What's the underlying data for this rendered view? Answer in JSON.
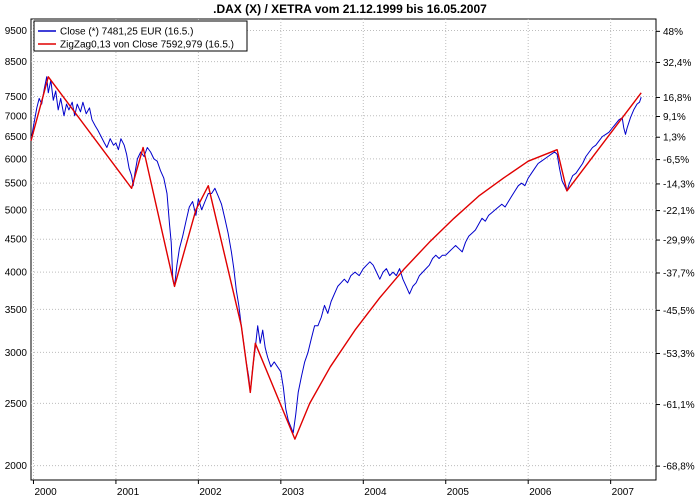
{
  "chart_data": {
    "type": "line",
    "title": ".DAX (X) / XETRA vom 21.12.1999 bis 16.05.2007",
    "xlabel": "",
    "ylabel": "",
    "y_scale": "log",
    "ylim": [
      1900,
      9900
    ],
    "xlim": [
      1999.97,
      2007.55
    ],
    "grid": true,
    "legend_position": "top-left",
    "x_ticks": [
      "2000",
      "2001",
      "2002",
      "2003",
      "2004",
      "2005",
      "2006",
      "2007"
    ],
    "y_ticks_left": [
      "2000",
      "2500",
      "3000",
      "3500",
      "4000",
      "4500",
      "5000",
      "5500",
      "6000",
      "6500",
      "7000",
      "7500",
      "8500",
      "9500"
    ],
    "y_ticks_right": [
      "-68,8%",
      "-61,1%",
      "-53,3%",
      "-45,5%",
      "-37,7%",
      "-29,9%",
      "-22,1%",
      "-14,3%",
      "-6,5%",
      "1,3%",
      "9,1%",
      "16,8%",
      "32,4%",
      "48%"
    ],
    "series": [
      {
        "name": "Close (*) 7481,25 EUR (16.5.)",
        "color": "#0000cc",
        "points": [
          [
            1999.97,
            6400
          ],
          [
            2000.0,
            6750
          ],
          [
            2000.04,
            7200
          ],
          [
            2000.07,
            7450
          ],
          [
            2000.1,
            7300
          ],
          [
            2000.13,
            7700
          ],
          [
            2000.16,
            8050
          ],
          [
            2000.18,
            7600
          ],
          [
            2000.21,
            7950
          ],
          [
            2000.24,
            7400
          ],
          [
            2000.27,
            7650
          ],
          [
            2000.3,
            7150
          ],
          [
            2000.33,
            7450
          ],
          [
            2000.37,
            7000
          ],
          [
            2000.4,
            7300
          ],
          [
            2000.43,
            7150
          ],
          [
            2000.47,
            7350
          ],
          [
            2000.5,
            7000
          ],
          [
            2000.53,
            7300
          ],
          [
            2000.57,
            7100
          ],
          [
            2000.6,
            7350
          ],
          [
            2000.64,
            7050
          ],
          [
            2000.68,
            7200
          ],
          [
            2000.71,
            6900
          ],
          [
            2000.75,
            6750
          ],
          [
            2000.78,
            6650
          ],
          [
            2000.82,
            6500
          ],
          [
            2000.86,
            6350
          ],
          [
            2000.89,
            6250
          ],
          [
            2000.93,
            6450
          ],
          [
            2000.97,
            6300
          ],
          [
            2001.0,
            6350
          ],
          [
            2001.03,
            6200
          ],
          [
            2001.06,
            6450
          ],
          [
            2001.1,
            6300
          ],
          [
            2001.13,
            6100
          ],
          [
            2001.16,
            5800
          ],
          [
            2001.19,
            5650
          ],
          [
            2001.21,
            5450
          ],
          [
            2001.23,
            5700
          ],
          [
            2001.26,
            6000
          ],
          [
            2001.3,
            6150
          ],
          [
            2001.34,
            6050
          ],
          [
            2001.38,
            6250
          ],
          [
            2001.42,
            6150
          ],
          [
            2001.46,
            6000
          ],
          [
            2001.5,
            5950
          ],
          [
            2001.54,
            5750
          ],
          [
            2001.58,
            5600
          ],
          [
            2001.62,
            5300
          ],
          [
            2001.65,
            4750
          ],
          [
            2001.67,
            4450
          ],
          [
            2001.69,
            3900
          ],
          [
            2001.71,
            3800
          ],
          [
            2001.74,
            4100
          ],
          [
            2001.77,
            4350
          ],
          [
            2001.81,
            4550
          ],
          [
            2001.85,
            4800
          ],
          [
            2001.89,
            5050
          ],
          [
            2001.93,
            5150
          ],
          [
            2001.97,
            4900
          ],
          [
            2002.0,
            5200
          ],
          [
            2002.04,
            5000
          ],
          [
            2002.08,
            5150
          ],
          [
            2002.12,
            5300
          ],
          [
            2002.16,
            5300
          ],
          [
            2002.2,
            5400
          ],
          [
            2002.24,
            5250
          ],
          [
            2002.28,
            5100
          ],
          [
            2002.32,
            4850
          ],
          [
            2002.36,
            4600
          ],
          [
            2002.4,
            4300
          ],
          [
            2002.43,
            4050
          ],
          [
            2002.46,
            3750
          ],
          [
            2002.49,
            3550
          ],
          [
            2002.52,
            3300
          ],
          [
            2002.55,
            3100
          ],
          [
            2002.58,
            2900
          ],
          [
            2002.61,
            2750
          ],
          [
            2002.63,
            2600
          ],
          [
            2002.66,
            2850
          ],
          [
            2002.69,
            3050
          ],
          [
            2002.72,
            3300
          ],
          [
            2002.75,
            3100
          ],
          [
            2002.78,
            3250
          ],
          [
            2002.81,
            3050
          ],
          [
            2002.84,
            2950
          ],
          [
            2002.88,
            2850
          ],
          [
            2002.92,
            2900
          ],
          [
            2002.96,
            2850
          ],
          [
            2003.0,
            2800
          ],
          [
            2003.03,
            2650
          ],
          [
            2003.06,
            2450
          ],
          [
            2003.09,
            2350
          ],
          [
            2003.12,
            2300
          ],
          [
            2003.15,
            2250
          ],
          [
            2003.18,
            2400
          ],
          [
            2003.21,
            2600
          ],
          [
            2003.25,
            2750
          ],
          [
            2003.29,
            2900
          ],
          [
            2003.33,
            3000
          ],
          [
            2003.37,
            3150
          ],
          [
            2003.41,
            3300
          ],
          [
            2003.45,
            3300
          ],
          [
            2003.49,
            3400
          ],
          [
            2003.53,
            3550
          ],
          [
            2003.57,
            3450
          ],
          [
            2003.61,
            3600
          ],
          [
            2003.65,
            3700
          ],
          [
            2003.69,
            3800
          ],
          [
            2003.73,
            3850
          ],
          [
            2003.77,
            3900
          ],
          [
            2003.81,
            3850
          ],
          [
            2003.85,
            3950
          ],
          [
            2003.9,
            4000
          ],
          [
            2003.95,
            3950
          ],
          [
            2004.0,
            4050
          ],
          [
            2004.04,
            4100
          ],
          [
            2004.08,
            4150
          ],
          [
            2004.12,
            4100
          ],
          [
            2004.16,
            4000
          ],
          [
            2004.2,
            3900
          ],
          [
            2004.24,
            4000
          ],
          [
            2004.28,
            4050
          ],
          [
            2004.32,
            3950
          ],
          [
            2004.36,
            4000
          ],
          [
            2004.4,
            3950
          ],
          [
            2004.44,
            4050
          ],
          [
            2004.48,
            3900
          ],
          [
            2004.52,
            3800
          ],
          [
            2004.56,
            3700
          ],
          [
            2004.6,
            3800
          ],
          [
            2004.64,
            3850
          ],
          [
            2004.68,
            3950
          ],
          [
            2004.72,
            4000
          ],
          [
            2004.76,
            4050
          ],
          [
            2004.8,
            4100
          ],
          [
            2004.84,
            4200
          ],
          [
            2004.88,
            4250
          ],
          [
            2004.92,
            4200
          ],
          [
            2004.96,
            4250
          ],
          [
            2005.0,
            4250
          ],
          [
            2005.04,
            4300
          ],
          [
            2005.08,
            4350
          ],
          [
            2005.12,
            4400
          ],
          [
            2005.16,
            4350
          ],
          [
            2005.2,
            4300
          ],
          [
            2005.24,
            4450
          ],
          [
            2005.28,
            4550
          ],
          [
            2005.32,
            4600
          ],
          [
            2005.36,
            4650
          ],
          [
            2005.4,
            4750
          ],
          [
            2005.44,
            4850
          ],
          [
            2005.48,
            4800
          ],
          [
            2005.52,
            4900
          ],
          [
            2005.56,
            4950
          ],
          [
            2005.6,
            5000
          ],
          [
            2005.64,
            5050
          ],
          [
            2005.68,
            5100
          ],
          [
            2005.72,
            5050
          ],
          [
            2005.76,
            5150
          ],
          [
            2005.8,
            5250
          ],
          [
            2005.84,
            5350
          ],
          [
            2005.88,
            5450
          ],
          [
            2005.92,
            5500
          ],
          [
            2005.96,
            5450
          ],
          [
            2006.0,
            5600
          ],
          [
            2006.04,
            5700
          ],
          [
            2006.08,
            5800
          ],
          [
            2006.12,
            5900
          ],
          [
            2006.16,
            5950
          ],
          [
            2006.2,
            6000
          ],
          [
            2006.24,
            6050
          ],
          [
            2006.28,
            6100
          ],
          [
            2006.32,
            6150
          ],
          [
            2006.35,
            6100
          ],
          [
            2006.38,
            5800
          ],
          [
            2006.41,
            5550
          ],
          [
            2006.44,
            5450
          ],
          [
            2006.47,
            5350
          ],
          [
            2006.5,
            5500
          ],
          [
            2006.54,
            5650
          ],
          [
            2006.58,
            5700
          ],
          [
            2006.62,
            5800
          ],
          [
            2006.66,
            5900
          ],
          [
            2006.7,
            6050
          ],
          [
            2006.74,
            6150
          ],
          [
            2006.78,
            6250
          ],
          [
            2006.82,
            6300
          ],
          [
            2006.86,
            6400
          ],
          [
            2006.9,
            6500
          ],
          [
            2006.94,
            6550
          ],
          [
            2006.98,
            6600
          ],
          [
            2007.02,
            6700
          ],
          [
            2007.06,
            6800
          ],
          [
            2007.1,
            6900
          ],
          [
            2007.14,
            6950
          ],
          [
            2007.16,
            6700
          ],
          [
            2007.18,
            6550
          ],
          [
            2007.2,
            6700
          ],
          [
            2007.24,
            6950
          ],
          [
            2007.28,
            7150
          ],
          [
            2007.32,
            7300
          ],
          [
            2007.35,
            7350
          ],
          [
            2007.37,
            7481
          ]
        ]
      },
      {
        "name": "ZigZag0,13 von Close 7592,979 (16.5.)",
        "color": "#e00000",
        "points": [
          [
            1999.97,
            6400
          ],
          [
            2000.18,
            8050
          ],
          [
            2001.19,
            5400
          ],
          [
            2001.33,
            6250
          ],
          [
            2001.71,
            3800
          ],
          [
            2001.97,
            5000
          ],
          [
            2002.12,
            5450
          ],
          [
            2002.52,
            3300
          ],
          [
            2002.63,
            2600
          ],
          [
            2002.69,
            3100
          ],
          [
            2003.17,
            2200
          ],
          [
            2003.35,
            2500
          ],
          [
            2003.6,
            2850
          ],
          [
            2003.9,
            3250
          ],
          [
            2004.2,
            3650
          ],
          [
            2004.5,
            4050
          ],
          [
            2004.8,
            4450
          ],
          [
            2005.1,
            4850
          ],
          [
            2005.4,
            5250
          ],
          [
            2005.7,
            5600
          ],
          [
            2006.0,
            5950
          ],
          [
            2006.35,
            6200
          ],
          [
            2006.47,
            5350
          ],
          [
            2007.37,
            7600
          ]
        ]
      }
    ]
  }
}
